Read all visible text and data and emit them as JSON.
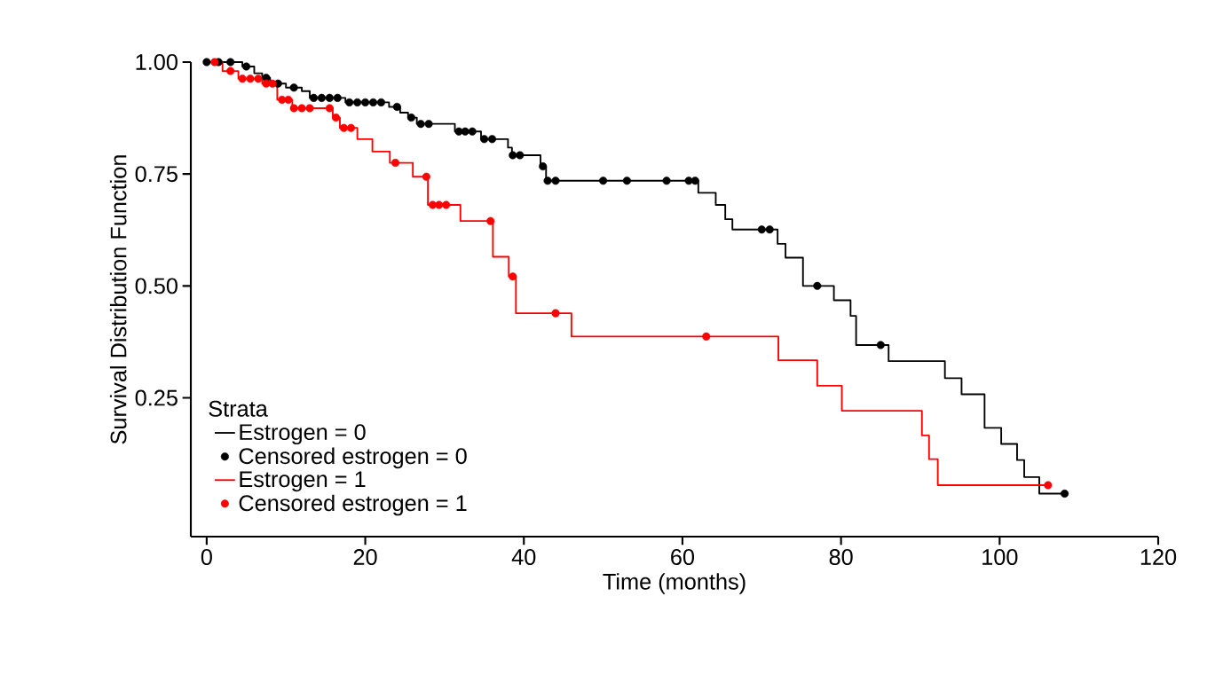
{
  "chart_data": {
    "type": "step",
    "xlabel": "Time (months)",
    "ylabel": "Survival Distribution Function",
    "legend_title": "Strata",
    "legend": "bottom left",
    "xlim": [
      -2,
      120
    ],
    "ylim": [
      -0.06,
      1.0
    ],
    "xticks": [
      0,
      20,
      40,
      60,
      80,
      100,
      120
    ],
    "yticks": [
      {
        "value": 0.25,
        "label": "0.25"
      },
      {
        "value": 0.5,
        "label": "0.50"
      },
      {
        "value": 0.75,
        "label": "0.75"
      },
      {
        "value": 1.0,
        "label": "1.00"
      }
    ],
    "series": [
      {
        "name": "Estrogen = 0",
        "color": "#000000",
        "marker": "none",
        "x": [
          0,
          4.5,
          6,
          7,
          8,
          10,
          12,
          13,
          17.5,
          23,
          24.4,
          25.4,
          26.5,
          31.3,
          34.6,
          38,
          38.5,
          42.1,
          42.8,
          62,
          64.2,
          65.4,
          66.3,
          72,
          73,
          75.2,
          79.1,
          81.2,
          81.9,
          86,
          93.1,
          95.2,
          98.1,
          100.2,
          102.2,
          103.1,
          105,
          108.2
        ],
        "values": [
          1.0,
          0.99,
          0.975,
          0.965,
          0.952,
          0.943,
          0.935,
          0.92,
          0.91,
          0.9,
          0.887,
          0.876,
          0.862,
          0.845,
          0.828,
          0.809,
          0.792,
          0.767,
          0.735,
          0.708,
          0.681,
          0.649,
          0.626,
          0.594,
          0.563,
          0.5,
          0.468,
          0.433,
          0.368,
          0.332,
          0.294,
          0.258,
          0.183,
          0.147,
          0.111,
          0.073,
          0.036,
          0.036
        ]
      },
      {
        "name": "Censored estrogen = 0",
        "type": "scatter",
        "color": "#000000",
        "marker": "circle",
        "x": [
          0,
          1.5,
          3,
          5,
          7.5,
          9,
          11,
          13.5,
          14.5,
          15.5,
          16.5,
          18,
          19,
          20,
          21,
          22,
          24,
          25.8,
          27,
          28,
          31.8,
          32.6,
          33.5,
          35,
          36,
          38.6,
          39.5,
          42.4,
          43,
          44,
          50,
          53,
          58,
          60.8,
          61.6,
          70,
          71,
          77,
          85,
          108.2
        ],
        "values": [
          1.0,
          1.0,
          1.0,
          0.99,
          0.965,
          0.952,
          0.943,
          0.92,
          0.92,
          0.92,
          0.92,
          0.91,
          0.91,
          0.91,
          0.91,
          0.91,
          0.9,
          0.876,
          0.862,
          0.862,
          0.845,
          0.845,
          0.845,
          0.828,
          0.828,
          0.792,
          0.792,
          0.767,
          0.735,
          0.735,
          0.735,
          0.735,
          0.735,
          0.735,
          0.735,
          0.626,
          0.626,
          0.5,
          0.368,
          0.036
        ]
      },
      {
        "name": "Estrogen = 1",
        "color": "#ff0000",
        "marker": "none",
        "x": [
          1,
          2,
          4,
          7,
          8.9,
          10.8,
          15.9,
          16.8,
          19,
          20.9,
          23.1,
          26,
          27.9,
          32,
          36.1,
          38.1,
          39,
          46,
          72.1,
          77,
          80.1,
          90.2,
          91.1,
          92.2,
          106.1
        ],
        "values": [
          1.0,
          0.98,
          0.963,
          0.952,
          0.916,
          0.897,
          0.876,
          0.853,
          0.828,
          0.8,
          0.775,
          0.744,
          0.681,
          0.645,
          0.565,
          0.521,
          0.439,
          0.387,
          0.334,
          0.277,
          0.221,
          0.166,
          0.113,
          0.055,
          0.055
        ]
      },
      {
        "name": "Censored estrogen = 1",
        "type": "scatter",
        "color": "#ff0000",
        "marker": "circle",
        "x": [
          1,
          3,
          4.5,
          5.5,
          6.5,
          7.5,
          8.3,
          9.5,
          10.3,
          11,
          12,
          13,
          15.5,
          16.3,
          17.3,
          18.2,
          23.8,
          27.7,
          28.5,
          29.3,
          30.2,
          35.8,
          38.6,
          44,
          63,
          106.1
        ],
        "values": [
          1.0,
          0.98,
          0.963,
          0.963,
          0.963,
          0.952,
          0.952,
          0.916,
          0.916,
          0.897,
          0.897,
          0.897,
          0.897,
          0.876,
          0.853,
          0.853,
          0.775,
          0.744,
          0.681,
          0.681,
          0.681,
          0.645,
          0.521,
          0.439,
          0.387,
          0.055
        ]
      }
    ]
  }
}
